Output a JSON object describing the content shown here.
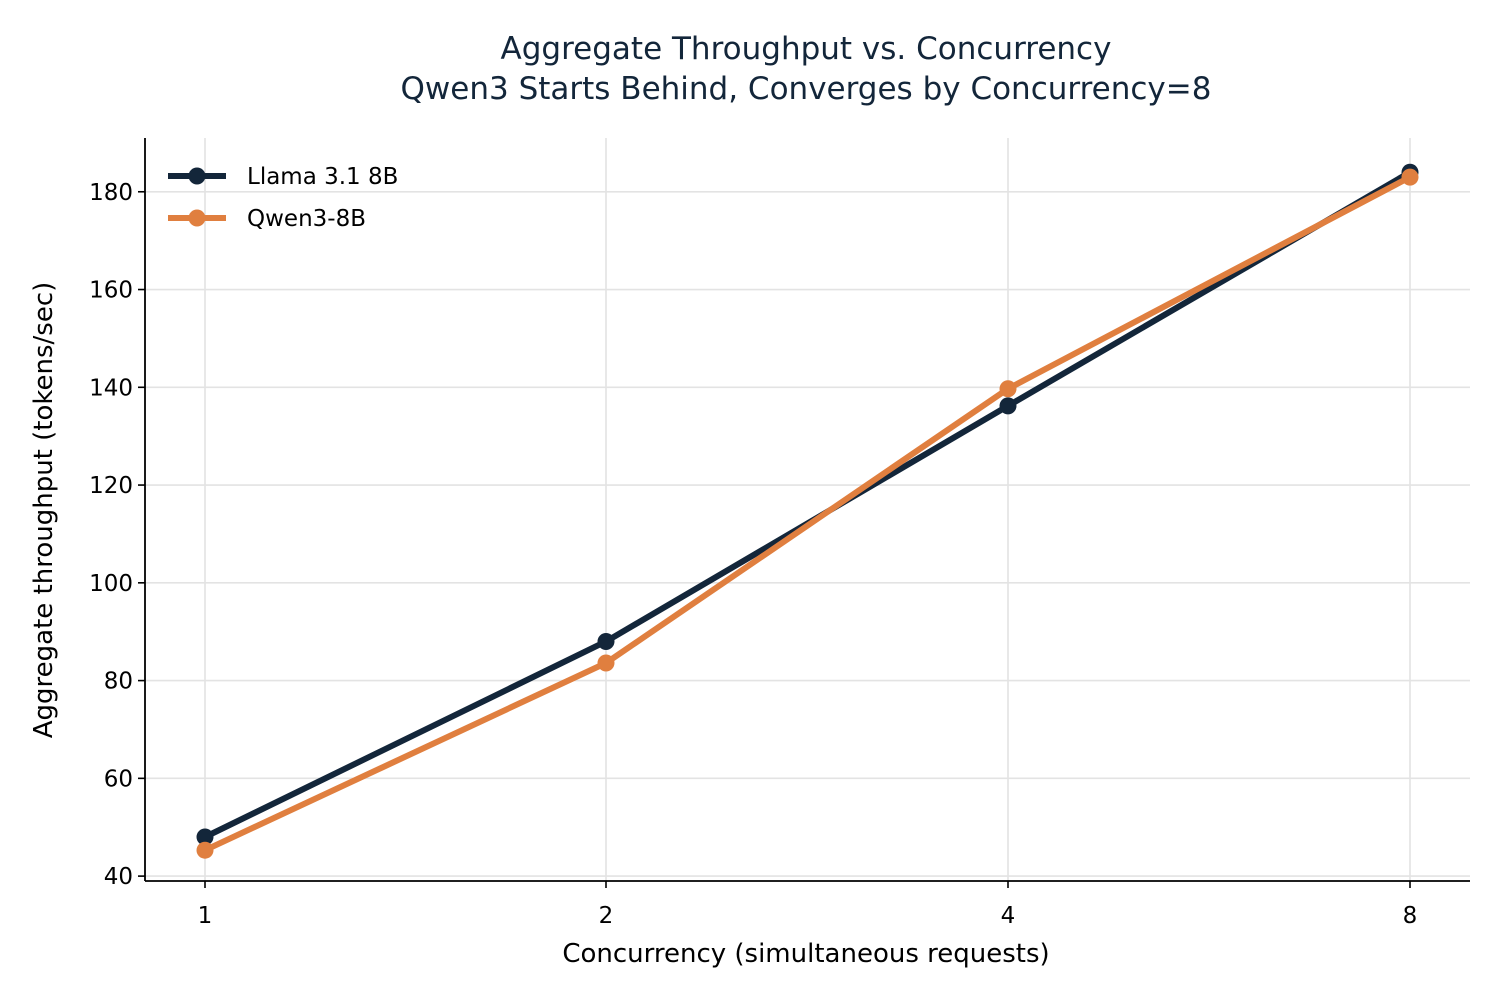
{
  "chart_data": {
    "type": "line",
    "title": "Aggregate Throughput vs. Concurrency",
    "subtitle": "Qwen3 Starts Behind, Converges by Concurrency=8",
    "xlabel": "Concurrency (simultaneous requests)",
    "ylabel": "Aggregate throughput (tokens/sec)",
    "categories": [
      "1",
      "2",
      "4",
      "8"
    ],
    "x_scale": "log2",
    "ylim": [
      39,
      191
    ],
    "yticks": [
      40,
      60,
      80,
      100,
      120,
      140,
      160,
      180
    ],
    "grid": true,
    "legend_position": "top-left",
    "series": [
      {
        "name": "Llama 3.1 8B",
        "color": "#13263a",
        "values": [
          48.0,
          88.0,
          136.2,
          184.0
        ]
      },
      {
        "name": "Qwen3-8B",
        "color": "#e07f3f",
        "values": [
          45.3,
          83.6,
          139.7,
          183.0
        ]
      }
    ]
  }
}
